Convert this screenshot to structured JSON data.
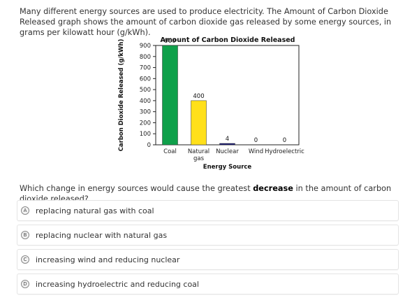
{
  "intro_text": "Many different energy sources are used to produce electricity. The Amount of Carbon Dioxide Released graph shows the amount of carbon dioxide gas released by some energy sources, in grams per kilowatt hour (g/kWh).",
  "question": {
    "prefix": "Which change in energy sources would cause the greatest ",
    "emphasis": "decrease",
    "suffix": " in the amount of carbon dioxide released?"
  },
  "options": [
    {
      "letter": "A",
      "text": "replacing natural gas with coal"
    },
    {
      "letter": "B",
      "text": "replacing nuclear with natural gas"
    },
    {
      "letter": "C",
      "text": "increasing wind and reducing nuclear"
    },
    {
      "letter": "D",
      "text": "increasing hydroelectric and reducing coal"
    }
  ],
  "colors": {
    "coal": "#0fa04a",
    "natural_gas": "#ffe01a",
    "nuclear": "#1a1a7a",
    "wind": "#888888",
    "hydroelectric": "#888888"
  },
  "chart_data": {
    "type": "bar",
    "title": "Amount of Carbon Dioxide Released",
    "xlabel": "Energy Source",
    "ylabel": "Carbon Dioxide Released (g/kWh)",
    "categories": [
      "Coal",
      "Natural gas",
      "Nuclear",
      "Wind",
      "Hydroelectric"
    ],
    "values": [
      900,
      400,
      4,
      0,
      0
    ],
    "data_labels": [
      "900",
      "400",
      "4",
      "0",
      "0"
    ],
    "ylim": [
      0,
      900
    ],
    "yticks": [
      0,
      100,
      200,
      300,
      400,
      500,
      600,
      700,
      800,
      900
    ],
    "grid": false,
    "legend": "none"
  }
}
